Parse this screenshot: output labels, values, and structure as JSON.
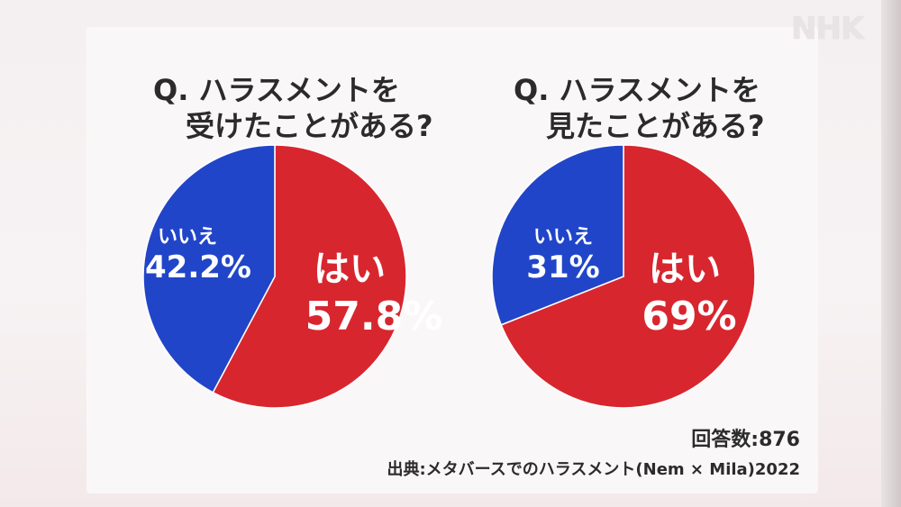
{
  "watermark": "NHK",
  "chart_data": [
    {
      "type": "pie",
      "title_line1": "Q. ハラスメントを",
      "title_line2": "受けたことがある?",
      "slices": [
        {
          "label": "はい",
          "value": 57.8,
          "value_text": "57.8%",
          "color": "#d8262f"
        },
        {
          "label": "いいえ",
          "value": 42.2,
          "value_text": "42.2%",
          "color": "#2145c8"
        }
      ]
    },
    {
      "type": "pie",
      "title_line1": "Q. ハラスメントを",
      "title_line2": "見たことがある?",
      "slices": [
        {
          "label": "はい",
          "value": 69,
          "value_text": "69%",
          "color": "#d8262f"
        },
        {
          "label": "いいえ",
          "value": 31,
          "value_text": "31%",
          "color": "#2145c8"
        }
      ]
    }
  ],
  "footer": {
    "responses": "回答数:876",
    "source": "出典:メタバースでのハラスメント(Nem × Mila)2022"
  }
}
